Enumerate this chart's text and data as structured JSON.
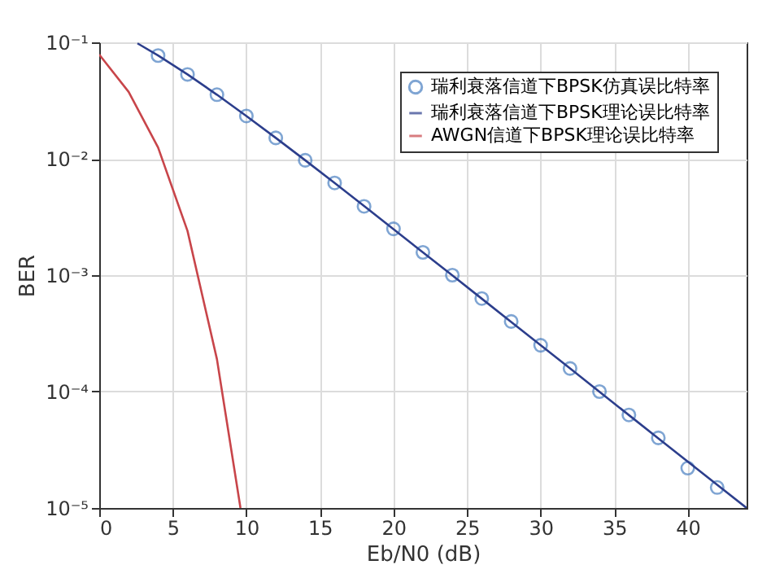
{
  "chart_data": {
    "type": "line",
    "xlabel": "Eb/N0 (dB)",
    "ylabel": "BER",
    "log": "y",
    "grid": true,
    "legend": "top right",
    "xlim": [
      0,
      44
    ],
    "xticks": [
      0,
      5,
      10,
      15,
      20,
      25,
      30,
      35,
      40
    ],
    "ylim": [
      1e-05,
      0.1
    ],
    "yticks": [
      {
        "value": 0.1,
        "label": "10⁻¹"
      },
      {
        "value": 0.01,
        "label": "10⁻²"
      },
      {
        "value": 0.001,
        "label": "10⁻³"
      },
      {
        "value": 0.0001,
        "label": "10⁻⁴"
      },
      {
        "value": 1e-05,
        "label": "10⁻⁵"
      }
    ],
    "series": [
      {
        "name": "瑞利衰落信道下BPSK仿真误比特率",
        "type": "scatter",
        "marker": "circle",
        "color": "#4a7fc1",
        "x": [
          4,
          6,
          8,
          10,
          12,
          14,
          16,
          18,
          20,
          22,
          24,
          26,
          28,
          30,
          32,
          34,
          36,
          38,
          40,
          42
        ],
        "values": [
          0.077,
          0.053,
          0.0355,
          0.0233,
          0.0151,
          0.0097,
          0.0062,
          0.0039,
          0.0025,
          0.00157,
          0.001,
          0.00063,
          0.0004,
          0.00025,
          0.000158,
          0.0001,
          6.3e-05,
          4e-05,
          2.2e-05,
          1.5e-05
        ]
      },
      {
        "name": "瑞利衰落信道下BPSK理论误比特率",
        "type": "line",
        "marker": "none",
        "color": "#2c3e8c",
        "x": [
          2.6,
          4,
          6,
          8,
          10,
          12,
          14,
          16,
          18,
          20,
          22,
          24,
          26,
          28,
          30,
          32,
          34,
          36,
          38,
          40,
          42,
          44
        ],
        "values": [
          0.098,
          0.0771,
          0.053,
          0.0355,
          0.0233,
          0.0151,
          0.0097,
          0.0062,
          0.00393,
          0.00248,
          0.00157,
          0.000995,
          0.000628,
          0.000396,
          0.00025,
          0.000158,
          9.95e-05,
          6.28e-05,
          3.96e-05,
          2.5e-05,
          1.58e-05,
          1e-05
        ]
      },
      {
        "name": "AWGN信道下BPSK理论误比特率",
        "type": "line",
        "marker": "none",
        "color": "#c8454a",
        "x": [
          0,
          2,
          4,
          6,
          8,
          9.6
        ],
        "values": [
          0.0786,
          0.0375,
          0.0125,
          0.0024,
          0.00019,
          1e-05
        ]
      }
    ]
  }
}
